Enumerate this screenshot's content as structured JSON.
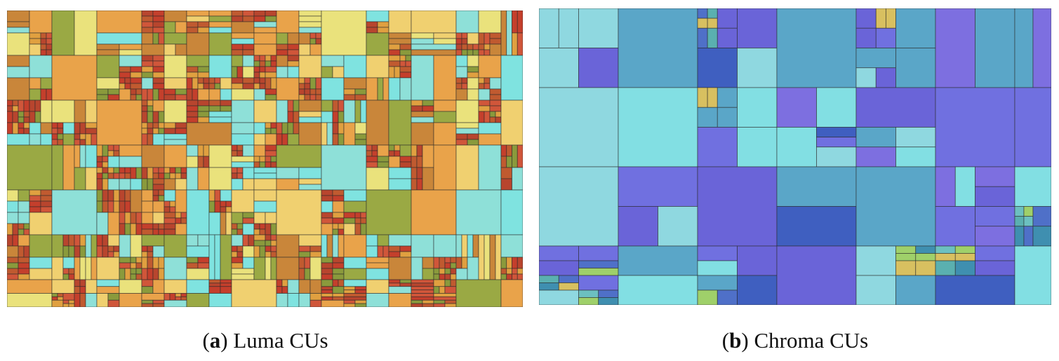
{
  "figure": {
    "panels": [
      {
        "caption": [
          "(",
          "a",
          ") Luma CUs"
        ]
      },
      {
        "caption": [
          "(",
          "b",
          ") Chroma CUs"
        ]
      }
    ]
  }
}
